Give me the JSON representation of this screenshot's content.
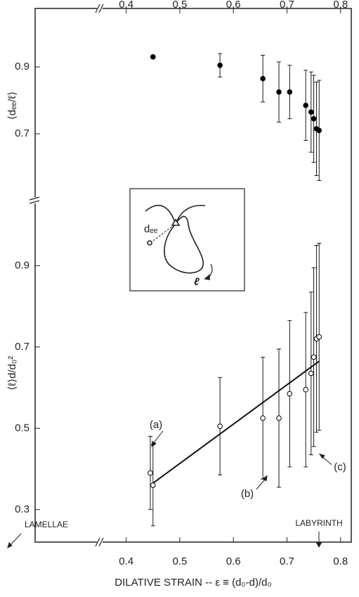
{
  "chart_data": [
    {
      "type": "scatter",
      "ylabel": "⟨dₑₑ/ℓ⟩",
      "xlim": [
        0.23,
        0.82
      ],
      "xticks": [
        0.4,
        0.5,
        0.6,
        0.7,
        0.8
      ],
      "ylim": [
        0.5,
        1.075
      ],
      "yticks": [
        0.7,
        0.9
      ],
      "series": [
        {
          "color": "#000000",
          "marker": "filled",
          "x": [
            0.45,
            0.575,
            0.655,
            0.685,
            0.705,
            0.735,
            0.745,
            0.75,
            0.755,
            0.76
          ],
          "values": [
            0.93,
            0.905,
            0.865,
            0.825,
            0.825,
            0.785,
            0.765,
            0.745,
            0.715,
            0.71
          ],
          "yerr": [
            0.005,
            0.035,
            0.07,
            0.09,
            0.08,
            0.105,
            0.12,
            0.13,
            0.14,
            0.15
          ]
        }
      ],
      "inset_labels": [
        "dₑₑ",
        "ℓ"
      ]
    },
    {
      "type": "scatter",
      "ylabel": "⟨ℓ⟩d/d₀²",
      "xlabel": "DILATIVE STRAIN -- ε ≡ (d₀-d)/d₀",
      "xlim": [
        0.23,
        0.82
      ],
      "xticks": [
        0.4,
        0.5,
        0.6,
        0.7,
        0.8
      ],
      "ylim": [
        0.22,
        1.06
      ],
      "yticks": [
        0.3,
        0.5,
        0.7,
        0.9
      ],
      "series": [
        {
          "color": "#000000",
          "marker": "open",
          "x": [
            0.445,
            0.45,
            0.575,
            0.655,
            0.685,
            0.705,
            0.735,
            0.745,
            0.75,
            0.755,
            0.76
          ],
          "values": [
            0.39,
            0.36,
            0.505,
            0.525,
            0.525,
            0.585,
            0.595,
            0.635,
            0.675,
            0.72,
            0.725
          ],
          "yerr": [
            0.09,
            0.1,
            0.12,
            0.15,
            0.17,
            0.18,
            0.19,
            0.2,
            0.22,
            0.23,
            0.23
          ]
        }
      ],
      "fit_line": {
        "x": [
          0.45,
          0.76
        ],
        "y": [
          0.365,
          0.665
        ]
      },
      "annotations": [
        "(a)",
        "(b)",
        "(c)",
        "LAMELLAE",
        "LABYRINTH"
      ]
    }
  ]
}
